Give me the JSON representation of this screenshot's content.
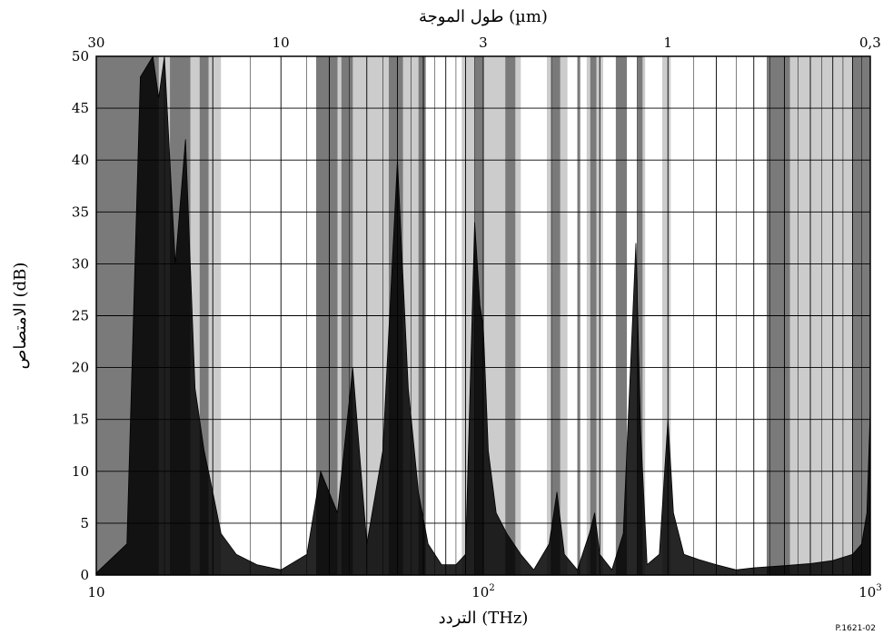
{
  "chart_data": {
    "type": "area",
    "x_axis": {
      "label": "التردد (THz)",
      "scale": "log",
      "range": [
        10,
        1000
      ],
      "tick_labels": [
        {
          "value": 10,
          "base": "10",
          "exp": ""
        },
        {
          "value": 100,
          "base": "10",
          "exp": "2"
        },
        {
          "value": 1000,
          "base": "10",
          "exp": "3"
        }
      ]
    },
    "x2_axis": {
      "label": "طول الموجة (µm)",
      "tick_labels": [
        {
          "wavelength": 30,
          "text": "30"
        },
        {
          "wavelength": 10,
          "text": "10"
        },
        {
          "wavelength": 3,
          "text": "3"
        },
        {
          "wavelength": 1,
          "text": "1"
        },
        {
          "wavelength": 0.3,
          "text": "0,3"
        }
      ]
    },
    "y_axis": {
      "label": "الامتصاص (dB)",
      "range": [
        0,
        50
      ],
      "ticks": [
        0,
        5,
        10,
        15,
        20,
        25,
        30,
        35,
        40,
        45,
        50
      ]
    },
    "grid": true,
    "absorption_bands": [
      {
        "shade": "dark",
        "color": "#7a7a7a",
        "bands": [
          [
            10,
            14.5
          ],
          [
            15.5,
            17.5
          ],
          [
            18.5,
            19.5
          ],
          [
            37,
            42
          ],
          [
            43,
            46
          ],
          [
            57,
            62
          ],
          [
            68,
            71
          ],
          [
            95,
            100
          ],
          [
            114,
            121
          ],
          [
            150,
            158
          ],
          [
            175,
            178
          ],
          [
            189,
            196
          ],
          [
            220,
            235
          ],
          [
            250,
            258
          ],
          [
            540,
            620
          ],
          [
            900,
            1000
          ]
        ]
      },
      {
        "shade": "light",
        "color": "#cccccc",
        "bands": [
          [
            10,
            21
          ],
          [
            37,
            68
          ],
          [
            88,
            125
          ],
          [
            146,
            165
          ],
          [
            185,
            204
          ],
          [
            222,
            232
          ],
          [
            252,
            262
          ],
          [
            290,
            305
          ],
          [
            575,
            1000
          ]
        ]
      },
      {
        "shade": "black",
        "color": "#000000",
        "curve": [
          [
            10,
            0.2
          ],
          [
            12,
            3
          ],
          [
            13,
            48
          ],
          [
            14,
            50
          ],
          [
            14.5,
            46
          ],
          [
            15,
            50
          ],
          [
            16,
            30
          ],
          [
            17,
            42
          ],
          [
            18,
            18
          ],
          [
            19,
            12
          ],
          [
            20,
            8
          ],
          [
            21,
            4
          ],
          [
            23,
            2
          ],
          [
            26,
            1
          ],
          [
            30,
            0.5
          ],
          [
            35,
            2
          ],
          [
            38,
            10
          ],
          [
            42,
            6
          ],
          [
            46,
            20
          ],
          [
            50,
            3
          ],
          [
            55,
            12
          ],
          [
            60,
            40
          ],
          [
            64,
            18
          ],
          [
            68,
            8
          ],
          [
            72,
            3
          ],
          [
            78,
            1
          ],
          [
            85,
            1
          ],
          [
            90,
            2
          ],
          [
            95,
            34
          ],
          [
            98,
            26
          ],
          [
            100,
            24
          ],
          [
            103,
            12
          ],
          [
            108,
            6
          ],
          [
            115,
            4
          ],
          [
            125,
            2
          ],
          [
            135,
            0.5
          ],
          [
            148,
            3
          ],
          [
            155,
            8
          ],
          [
            162,
            2
          ],
          [
            175,
            0.5
          ],
          [
            188,
            4
          ],
          [
            194,
            6
          ],
          [
            200,
            2
          ],
          [
            215,
            0.5
          ],
          [
            230,
            4
          ],
          [
            248,
            32
          ],
          [
            255,
            14
          ],
          [
            265,
            1
          ],
          [
            285,
            2
          ],
          [
            300,
            15
          ],
          [
            310,
            6
          ],
          [
            330,
            2
          ],
          [
            360,
            1.5
          ],
          [
            400,
            1
          ],
          [
            450,
            0.5
          ],
          [
            500,
            0.7
          ],
          [
            600,
            0.9
          ],
          [
            700,
            1.1
          ],
          [
            800,
            1.4
          ],
          [
            900,
            2
          ],
          [
            950,
            3
          ],
          [
            980,
            6
          ],
          [
            1000,
            16
          ]
        ]
      }
    ]
  },
  "figure_ref": "P.1621-02"
}
